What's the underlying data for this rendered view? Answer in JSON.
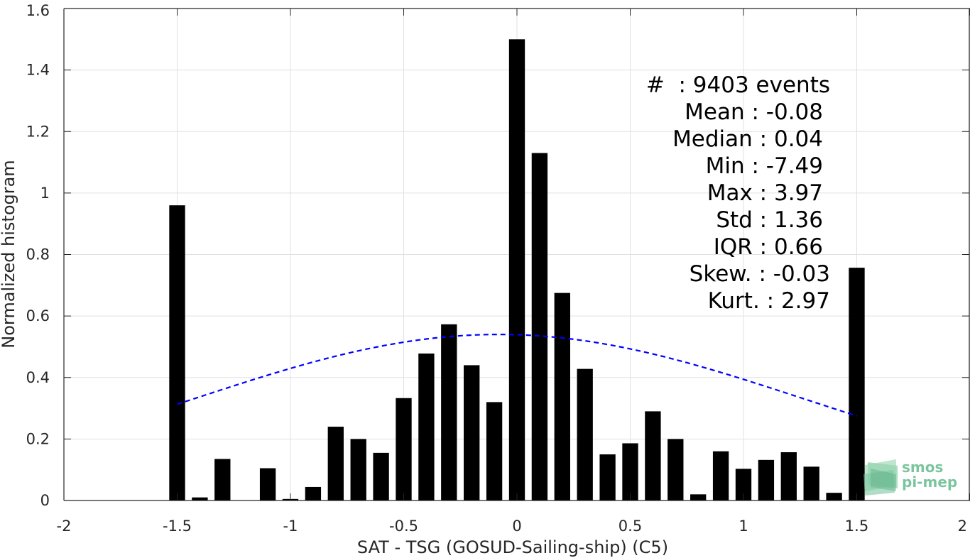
{
  "chart_data": {
    "type": "bar",
    "xlabel": "SAT - TSG (GOSUD-Sailing-ship) (C5)",
    "ylabel": "Normalized histogram",
    "xlim": [
      -2,
      2
    ],
    "ylim": [
      0,
      1.6
    ],
    "grid": true,
    "x_ticks": [
      -2,
      -1.5,
      -1,
      -0.5,
      0,
      0.5,
      1,
      1.5,
      2
    ],
    "x_tick_labels": [
      "-2",
      "-1.5",
      "-1",
      "-0.5",
      "0",
      "0.5",
      "1",
      "1.5",
      "2"
    ],
    "y_ticks": [
      0,
      0.2,
      0.4,
      0.6,
      0.8,
      1,
      1.2,
      1.4,
      1.6
    ],
    "y_tick_labels": [
      "0",
      "0.2",
      "0.4",
      "0.6",
      "0.8",
      "1",
      "1.2",
      "1.4",
      "1.6"
    ],
    "bar_width": 0.07,
    "bar_color": "#000000",
    "series": [
      {
        "x": [
          -1.5,
          -1.4,
          -1.3,
          -1.2,
          -1.1,
          -1.0,
          -0.9,
          -0.8,
          -0.7,
          -0.6,
          -0.5,
          -0.4,
          -0.3,
          -0.2,
          -0.1,
          0.0,
          0.1,
          0.2,
          0.3,
          0.4,
          0.5,
          0.6,
          0.7,
          0.8,
          0.9,
          1.0,
          1.1,
          1.2,
          1.3,
          1.4,
          1.5
        ],
        "values": [
          0.96,
          0.01,
          0.135,
          0.0,
          0.105,
          0.005,
          0.044,
          0.24,
          0.2,
          0.155,
          0.333,
          0.478,
          0.573,
          0.44,
          0.32,
          1.5,
          1.13,
          0.675,
          0.428,
          0.15,
          0.186,
          0.29,
          0.2,
          0.02,
          0.16,
          0.103,
          0.132,
          0.157,
          0.11,
          0.025,
          0.757
        ]
      }
    ],
    "normal_fit": {
      "mean": -0.08,
      "std": 1.36,
      "peak": 0.54,
      "x_range": [
        -1.5,
        1.5
      ],
      "color": "#0000ff",
      "style": "dashed"
    },
    "stats": [
      "#  : 9403 events",
      "Mean : -0.08",
      "Median : 0.04",
      "Min : -7.49",
      "Max : 3.97",
      "Std : 1.36",
      "IQR : 0.66",
      "Skew. : -0.03",
      "Kurt. : 2.97"
    ]
  },
  "logo": {
    "line1": "smos",
    "line2": "pi-mep",
    "color": "#6dbf94"
  }
}
